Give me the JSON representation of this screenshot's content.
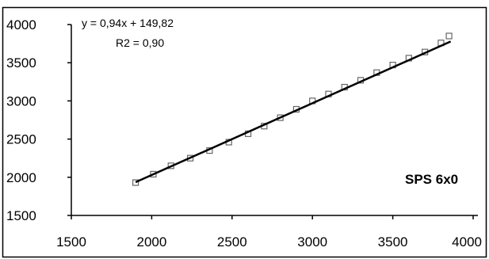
{
  "chart_data": {
    "type": "scatter",
    "xlim": [
      1500,
      4000
    ],
    "ylim": [
      1500,
      4000
    ],
    "xticks": [
      "1500",
      "2000",
      "2500",
      "3000",
      "3500",
      "4000"
    ],
    "yticks": [
      "1500",
      "2000",
      "2500",
      "3000",
      "3500",
      "4000"
    ],
    "grid": false,
    "points": [
      {
        "x": 1900,
        "y": 1930
      },
      {
        "x": 2010,
        "y": 2040
      },
      {
        "x": 2120,
        "y": 2150
      },
      {
        "x": 2240,
        "y": 2250
      },
      {
        "x": 2360,
        "y": 2350
      },
      {
        "x": 2480,
        "y": 2460
      },
      {
        "x": 2600,
        "y": 2570
      },
      {
        "x": 2700,
        "y": 2670
      },
      {
        "x": 2800,
        "y": 2780
      },
      {
        "x": 2900,
        "y": 2890
      },
      {
        "x": 3000,
        "y": 3000
      },
      {
        "x": 3100,
        "y": 3090
      },
      {
        "x": 3200,
        "y": 3180
      },
      {
        "x": 3300,
        "y": 3270
      },
      {
        "x": 3400,
        "y": 3370
      },
      {
        "x": 3500,
        "y": 3470
      },
      {
        "x": 3600,
        "y": 3560
      },
      {
        "x": 3700,
        "y": 3640
      },
      {
        "x": 3800,
        "y": 3760
      },
      {
        "x": 3850,
        "y": 3850
      }
    ],
    "trendline": {
      "x_start": 1900,
      "x_end": 3860,
      "slope": 0.94,
      "intercept": 149.82
    },
    "equation_text": "y = 0,94x + 149,82",
    "r2_text": "R2 = 0,90",
    "series_tag": "SPS 6x0",
    "colors": {
      "points": "#666666",
      "line": "#000000",
      "axes": "#000000",
      "frame": "#000000"
    }
  }
}
